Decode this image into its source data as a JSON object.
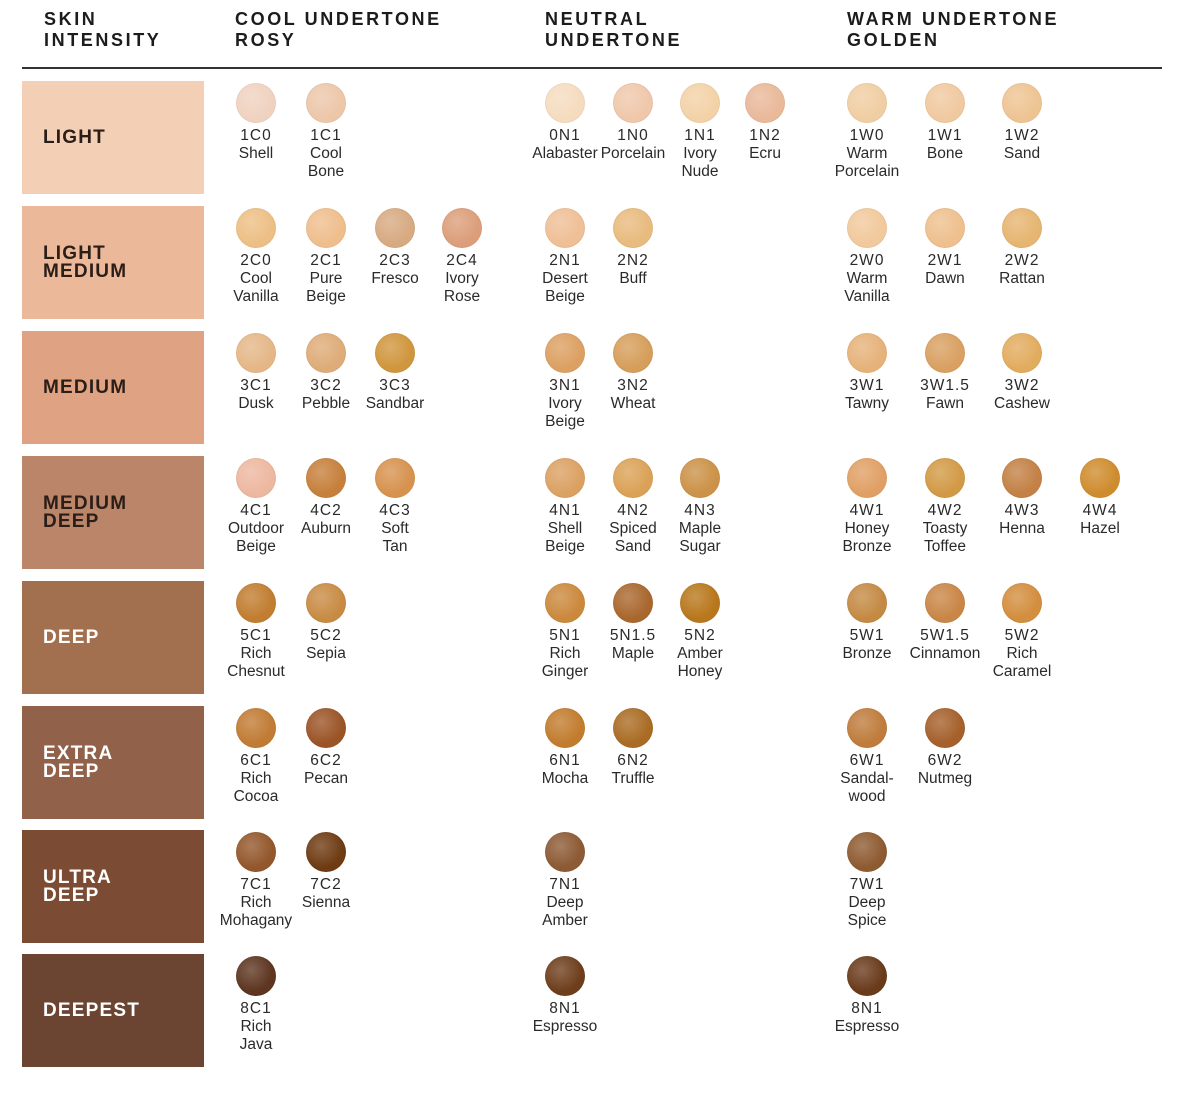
{
  "headers": {
    "skin": "SKIN\nINTENSITY",
    "cool": "COOL UNDERTONE\nROSY",
    "neutral": "NEUTRAL\nUNDERTONE",
    "warm": "WARM UNDERTONE\nGOLDEN"
  },
  "rows": [
    {
      "label": "LIGHT",
      "bg": "#f2cfb5",
      "text_color": "#2b1d17",
      "cool": [
        {
          "code": "1C0",
          "name": "Shell",
          "color": "#f0d2c0"
        },
        {
          "code": "1C1",
          "name": "Cool\nBone",
          "color": "#ecc7aa"
        }
      ],
      "neutral": [
        {
          "code": "0N1",
          "name": "Alabaster",
          "color": "#f5dcbf"
        },
        {
          "code": "1N0",
          "name": "Porcelain",
          "color": "#efc8ab"
        },
        {
          "code": "1N1",
          "name": "Ivory\nNude",
          "color": "#f3d2a8"
        },
        {
          "code": "1N2",
          "name": "Ecru",
          "color": "#e9b99a"
        }
      ],
      "warm": [
        {
          "code": "1W0",
          "name": "Warm\nPorcelain",
          "color": "#f0cea3"
        },
        {
          "code": "1W1",
          "name": "Bone",
          "color": "#f0c9a0"
        },
        {
          "code": "1W2",
          "name": "Sand",
          "color": "#eec493"
        }
      ]
    },
    {
      "label": "LIGHT\nMEDIUM",
      "bg": "#ebb999",
      "text_color": "#2b1d17",
      "cool": [
        {
          "code": "2C0",
          "name": "Cool\nVanilla",
          "color": "#edbf85"
        },
        {
          "code": "2C1",
          "name": "Pure\nBeige",
          "color": "#efbe8d"
        },
        {
          "code": "2C3",
          "name": "Fresco",
          "color": "#d7aa82"
        },
        {
          "code": "2C4",
          "name": "Ivory\nRose",
          "color": "#dc9e7a"
        }
      ],
      "neutral": [
        {
          "code": "2N1",
          "name": "Desert\nBeige",
          "color": "#efbf96"
        },
        {
          "code": "2N2",
          "name": "Buff",
          "color": "#e8bb7e"
        }
      ],
      "warm": [
        {
          "code": "2W0",
          "name": "Warm\nVanilla",
          "color": "#f1c99c"
        },
        {
          "code": "2W1",
          "name": "Dawn",
          "color": "#eec08e"
        },
        {
          "code": "2W2",
          "name": "Rattan",
          "color": "#e6b571"
        }
      ]
    },
    {
      "label": "MEDIUM",
      "bg": "#dfa383",
      "text_color": "#2b1d17",
      "cool": [
        {
          "code": "3C1",
          "name": "Dusk",
          "color": "#e5b788"
        },
        {
          "code": "3C2",
          "name": "Pebble",
          "color": "#deac78"
        },
        {
          "code": "3C3",
          "name": "Sandbar",
          "color": "#d0963e"
        }
      ],
      "neutral": [
        {
          "code": "3N1",
          "name": "Ivory\nBeige",
          "color": "#dca063"
        },
        {
          "code": "3N2",
          "name": "Wheat",
          "color": "#d69e5b"
        }
      ],
      "warm": [
        {
          "code": "3W1",
          "name": "Tawny",
          "color": "#e6b27a"
        },
        {
          "code": "3W1.5",
          "name": "Fawn",
          "color": "#d9a062"
        },
        {
          "code": "3W2",
          "name": "Cashew",
          "color": "#e2ac5f"
        }
      ]
    },
    {
      "label": "MEDIUM\nDEEP",
      "bg": "#ba8568",
      "text_color": "#2b1d17",
      "cool": [
        {
          "code": "4C1",
          "name": "Outdoor\nBeige",
          "color": "#edb8a0"
        },
        {
          "code": "4C2",
          "name": "Auburn",
          "color": "#c6803b"
        },
        {
          "code": "4C3",
          "name": "Soft\nTan",
          "color": "#d7924f"
        }
      ],
      "neutral": [
        {
          "code": "4N1",
          "name": "Shell\nBeige",
          "color": "#dba163"
        },
        {
          "code": "4N2",
          "name": "Spiced\nSand",
          "color": "#dba257"
        },
        {
          "code": "4N3",
          "name": "Maple\nSugar",
          "color": "#cc9248"
        }
      ],
      "warm": [
        {
          "code": "4W1",
          "name": "Honey\nBronze",
          "color": "#e0a065"
        },
        {
          "code": "4W2",
          "name": "Toasty\nToffee",
          "color": "#d29a46"
        },
        {
          "code": "4W3",
          "name": "Henna",
          "color": "#c38145"
        },
        {
          "code": "4W4",
          "name": "Hazel",
          "color": "#cf8c2e"
        }
      ]
    },
    {
      "label": "DEEP",
      "bg": "#a26f4f",
      "text_color": "#ffffff",
      "cool": [
        {
          "code": "5C1",
          "name": "Rich\nChesnut",
          "color": "#c17d30"
        },
        {
          "code": "5C2",
          "name": "Sepia",
          "color": "#c88b44"
        }
      ],
      "neutral": [
        {
          "code": "5N1",
          "name": "Rich\nGinger",
          "color": "#cb893d"
        },
        {
          "code": "5N1.5",
          "name": "Maple",
          "color": "#a9672e"
        },
        {
          "code": "5N2",
          "name": "Amber\nHoney",
          "color": "#b8771c"
        }
      ],
      "warm": [
        {
          "code": "5W1",
          "name": "Bronze",
          "color": "#c48a44"
        },
        {
          "code": "5W1.5",
          "name": "Cinnamon",
          "color": "#c98647"
        },
        {
          "code": "5W2",
          "name": "Rich\nCaramel",
          "color": "#d38e3e"
        }
      ]
    },
    {
      "label": "EXTRA\nDEEP",
      "bg": "#91614a",
      "text_color": "#ffffff",
      "cool": [
        {
          "code": "6C1",
          "name": "Rich\nCocoa",
          "color": "#c17b34"
        },
        {
          "code": "6C2",
          "name": "Pecan",
          "color": "#9b5426"
        }
      ],
      "neutral": [
        {
          "code": "6N1",
          "name": "Mocha",
          "color": "#c27c2e"
        },
        {
          "code": "6N2",
          "name": "Truffle",
          "color": "#aa6c24"
        }
      ],
      "warm": [
        {
          "code": "6W1",
          "name": "Sandal-\nwood",
          "color": "#bf7c3c"
        },
        {
          "code": "6W2",
          "name": "Nutmeg",
          "color": "#a5602b"
        }
      ]
    },
    {
      "label": "ULTRA\nDEEP",
      "bg": "#7b4b33",
      "text_color": "#ffffff",
      "cool": [
        {
          "code": "7C1",
          "name": "Rich\nMohagany",
          "color": "#93572b"
        },
        {
          "code": "7C2",
          "name": "Sienna",
          "color": "#6e3b12"
        }
      ],
      "neutral": [
        {
          "code": "7N1",
          "name": "Deep\nAmber",
          "color": "#8c5a34"
        }
      ],
      "warm": [
        {
          "code": "7W1",
          "name": "Deep\nSpice",
          "color": "#8e5b31"
        }
      ]
    },
    {
      "label": "DEEPEST",
      "bg": "#6b4432",
      "text_color": "#ffffff",
      "cool": [
        {
          "code": "8C1",
          "name": "Rich\nJava",
          "color": "#5d3520"
        }
      ],
      "neutral": [
        {
          "code": "8N1",
          "name": "Espresso",
          "color": "#6e3e1c"
        }
      ],
      "warm": [
        {
          "code": "8N1",
          "name": "Espresso",
          "color": "#6a3b1b"
        }
      ]
    }
  ]
}
